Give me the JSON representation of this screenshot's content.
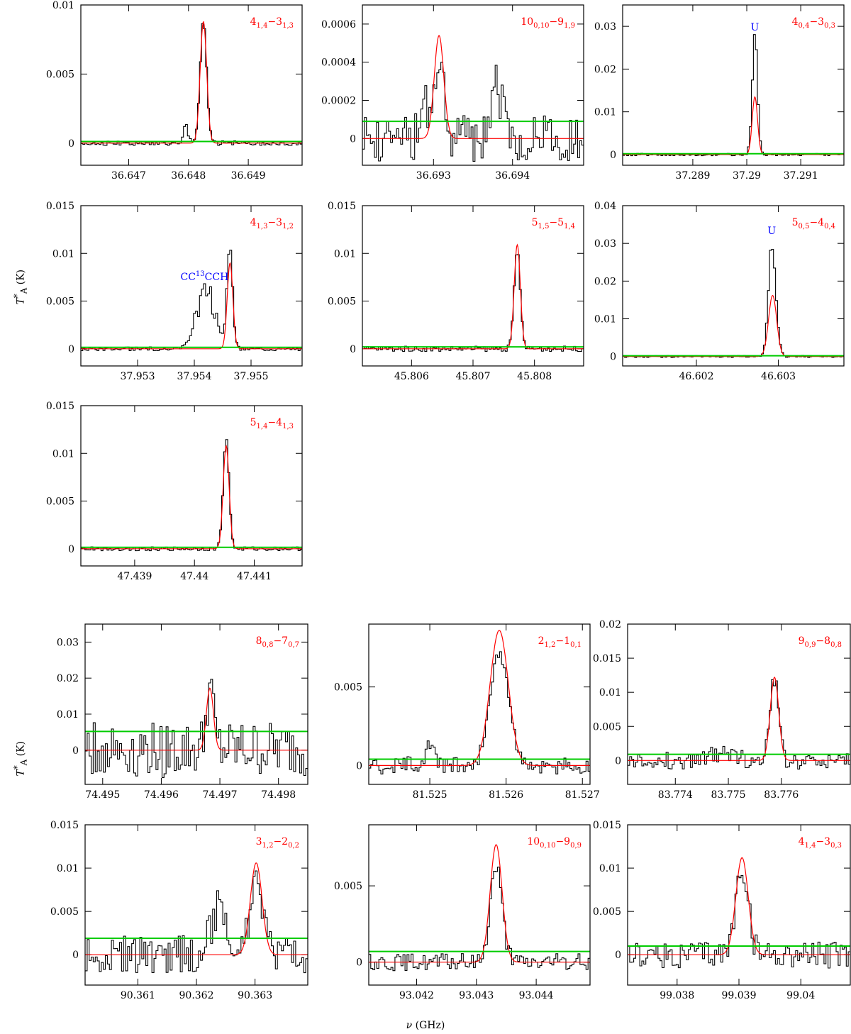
{
  "figure": {
    "y_axis_label": {
      "symbol": "T",
      "sup": "*",
      "sub": "A",
      "unit": "(K)"
    },
    "x_axis_label": {
      "symbol": "ν",
      "unit": "(GHz)"
    },
    "colors": {
      "observed": "#000000",
      "fit": "#ff0000",
      "noise": "#00cc00",
      "blend_label": "#0000ff",
      "line_label": "#ff0000"
    }
  },
  "chart_data": [
    {
      "type": "line",
      "label": {
        "main": "4",
        "sub1": "1,4",
        "dash": "−",
        "main2": "3",
        "sub2": "1,3"
      },
      "xlim": [
        36.6462,
        36.6499
      ],
      "ylim": [
        -0.0016,
        0.01
      ],
      "xticks": [
        "36.647",
        "36.648",
        "36.649"
      ],
      "xtick_values": [
        36.647,
        36.648,
        36.649
      ],
      "yticks": [
        "0",
        "0.005",
        "0.01"
      ],
      "ytick_values": [
        0,
        0.005,
        0.01
      ],
      "noise": 0.00012,
      "peaks": [
        {
          "x": 36.64825,
          "h": 0.0088,
          "w": 5.5e-05
        }
      ],
      "extra": [
        {
          "x": 36.64795,
          "h": 0.0011,
          "w": 4e-05
        }
      ],
      "obs_scale": 1.0,
      "annotations": []
    },
    {
      "type": "line",
      "label": {
        "main": "10",
        "sub1": "0,10",
        "dash": "−",
        "main2": "9",
        "sub2": "1,9"
      },
      "xlim": [
        36.6921,
        36.6949
      ],
      "ylim": [
        -0.00014,
        0.0007
      ],
      "xticks": [
        "36.693",
        "36.694"
      ],
      "xtick_values": [
        36.693,
        36.694
      ],
      "yticks": [
        "0",
        "0.0002",
        "0.0004",
        "0.0006"
      ],
      "ytick_values": [
        0,
        0.0002,
        0.0004,
        0.0006
      ],
      "noise": 9e-05,
      "peaks": [
        {
          "x": 36.69307,
          "h": 0.00054,
          "w": 6e-05
        }
      ],
      "extra": [
        {
          "x": 36.6929,
          "h": 0.0002,
          "w": 6e-05
        },
        {
          "x": 36.6938,
          "h": 0.00025,
          "w": 8e-05
        }
      ],
      "obs_scale": 0.85,
      "annotations": []
    },
    {
      "type": "line",
      "label": {
        "main": "4",
        "sub1": "0,4",
        "dash": "−",
        "main2": "3",
        "sub2": "0,3"
      },
      "xlim": [
        37.2877,
        37.2918
      ],
      "ylim": [
        -0.0025,
        0.035
      ],
      "xticks": [
        "37.289",
        "37.29",
        "37.291"
      ],
      "xtick_values": [
        37.289,
        37.29,
        37.291
      ],
      "yticks": [
        "0",
        "0.01",
        "0.02",
        "0.03"
      ],
      "ytick_values": [
        0,
        0.01,
        0.02,
        0.03
      ],
      "noise": 0.0002,
      "peaks": [
        {
          "x": 37.29015,
          "h": 0.0135,
          "w": 5e-05
        }
      ],
      "extra": [
        {
          "x": 37.29015,
          "h": 0.014,
          "w": 5e-05
        }
      ],
      "obs_scale": 1.0,
      "annotations": [
        {
          "text": "U",
          "x": 37.29015,
          "y": 0.029
        }
      ]
    },
    {
      "type": "line",
      "label": {
        "main": "4",
        "sub1": "1,3",
        "dash": "−",
        "main2": "3",
        "sub2": "1,2"
      },
      "xlim": [
        37.952,
        37.9559
      ],
      "ylim": [
        -0.0018,
        0.015
      ],
      "xticks": [
        "37.953",
        "37.954",
        "37.955"
      ],
      "xtick_values": [
        37.953,
        37.954,
        37.955
      ],
      "yticks": [
        "0",
        "0.005",
        "0.01",
        "0.015"
      ],
      "ytick_values": [
        0,
        0.005,
        0.01,
        0.015
      ],
      "noise": 0.00015,
      "peaks": [
        {
          "x": 37.95463,
          "h": 0.009,
          "w": 5e-05
        }
      ],
      "extra": [
        {
          "x": 37.9542,
          "h": 0.0062,
          "w": 0.00016
        },
        {
          "x": 37.9546,
          "h": 0.0018,
          "w": 5e-05
        }
      ],
      "obs_scale": 1.0,
      "annotations": [
        {
          "text": "CC",
          "sup": "13",
          "text2": "CCH",
          "x": 37.95418,
          "y": 0.0072
        }
      ]
    },
    {
      "type": "line",
      "label": {
        "main": "5",
        "sub1": "1,5",
        "dash": "−",
        "main2": "5",
        "sub2": "1,4"
      },
      "xlim": [
        45.8052,
        45.8088
      ],
      "ylim": [
        -0.0018,
        0.015
      ],
      "xticks": [
        "45.806",
        "45.807",
        "45.808"
      ],
      "xtick_values": [
        45.806,
        45.807,
        45.808
      ],
      "yticks": [
        "0",
        "0.005",
        "0.01",
        "0.015"
      ],
      "ytick_values": [
        0,
        0.005,
        0.01,
        0.015
      ],
      "noise": 0.0002,
      "peaks": [
        {
          "x": 45.80772,
          "h": 0.0109,
          "w": 5e-05
        }
      ],
      "extra": [],
      "obs_scale": 0.95,
      "annotations": []
    },
    {
      "type": "line",
      "label": {
        "main": "5",
        "sub1": "0,5",
        "dash": "−",
        "main2": "4",
        "sub2": "0,4"
      },
      "xlim": [
        46.6011,
        46.6038
      ],
      "ylim": [
        -0.0025,
        0.04
      ],
      "xticks": [
        "46.602",
        "46.603"
      ],
      "xtick_values": [
        46.602,
        46.603
      ],
      "yticks": [
        "0",
        "0.01",
        "0.02",
        "0.03",
        "0.04"
      ],
      "ytick_values": [
        0,
        0.01,
        0.02,
        0.03,
        0.04
      ],
      "noise": 0.0002,
      "peaks": [
        {
          "x": 46.60293,
          "h": 0.0162,
          "w": 5e-05
        }
      ],
      "extra": [
        {
          "x": 46.60292,
          "h": 0.014,
          "w": 4e-05
        }
      ],
      "obs_scale": 1.0,
      "annotations": [
        {
          "text": "U",
          "x": 46.60292,
          "y": 0.0325
        }
      ]
    },
    {
      "type": "line",
      "label": {
        "main": "5",
        "sub1": "1,4",
        "dash": "−",
        "main2": "4",
        "sub2": "1,3"
      },
      "xlim": [
        47.4381,
        47.4418
      ],
      "ylim": [
        -0.0018,
        0.015
      ],
      "xticks": [
        "47.439",
        "47.44",
        "47.441"
      ],
      "xtick_values": [
        47.439,
        47.44,
        47.441
      ],
      "yticks": [
        "0",
        "0.005",
        "0.01",
        "0.015"
      ],
      "ytick_values": [
        0,
        0.005,
        0.01,
        0.015
      ],
      "noise": 0.00015,
      "peaks": [
        {
          "x": 47.44053,
          "h": 0.0108,
          "w": 5e-05
        }
      ],
      "extra": [],
      "obs_scale": 1.06,
      "annotations": []
    },
    {
      "type": "line",
      "label": {
        "main": "8",
        "sub1": "0,8",
        "dash": "−",
        "main2": "7",
        "sub2": "0,7"
      },
      "xlim": [
        74.4947,
        74.4985
      ],
      "ylim": [
        -0.0095,
        0.035
      ],
      "xticks": [
        "74.495",
        "74.496",
        "74.497",
        "74.498"
      ],
      "xtick_values": [
        74.495,
        74.496,
        74.497,
        74.498
      ],
      "yticks": [
        "0",
        "0.01",
        "0.02",
        "0.03"
      ],
      "ytick_values": [
        0,
        0.01,
        0.02,
        0.03
      ],
      "noise": 0.0055,
      "noise_offset": 0.0052,
      "peaks": [
        {
          "x": 74.49683,
          "h": 0.0172,
          "w": 6e-05
        }
      ],
      "extra": [],
      "obs_scale": 1.0,
      "annotations": []
    },
    {
      "type": "line",
      "label": {
        "main": "2",
        "sub1": "1,2",
        "dash": "−",
        "main2": "1",
        "sub2": "0,1"
      },
      "xlim": [
        81.5242,
        81.5271
      ],
      "ylim": [
        -0.0012,
        0.009
      ],
      "xticks": [
        "81.525",
        "81.526",
        "81.527"
      ],
      "xtick_values": [
        81.525,
        81.526,
        81.527
      ],
      "yticks": [
        "0",
        "0.005"
      ],
      "ytick_values": [
        0,
        0.005
      ],
      "noise": 0.0004,
      "peaks": [
        {
          "x": 81.52591,
          "h": 0.0086,
          "w": 0.00012
        }
      ],
      "extra": [
        {
          "x": 81.525,
          "h": 0.0014,
          "w": 6e-05
        }
      ],
      "obs_scale": 0.85,
      "annotations": []
    },
    {
      "type": "line",
      "label": {
        "main": "9",
        "sub1": "0,9",
        "dash": "−",
        "main2": "8",
        "sub2": "0,8"
      },
      "xlim": [
        83.7731,
        83.7773
      ],
      "ylim": [
        -0.0035,
        0.02
      ],
      "xticks": [
        "83.774",
        "83.775",
        "83.776"
      ],
      "xtick_values": [
        83.774,
        83.775,
        83.776
      ],
      "yticks": [
        "0",
        "0.005",
        "0.01",
        "0.015",
        "0.02"
      ],
      "ytick_values": [
        0,
        0.005,
        0.01,
        0.015,
        0.02
      ],
      "noise": 0.0009,
      "noise_offset": 0.0009,
      "peaks": [
        {
          "x": 83.77587,
          "h": 0.0122,
          "w": 8e-05
        }
      ],
      "extra": [
        {
          "x": 83.7749,
          "h": 0.0015,
          "w": 0.0002
        }
      ],
      "obs_scale": 1.0,
      "annotations": []
    },
    {
      "type": "line",
      "label": {
        "main": "3",
        "sub1": "1,2",
        "dash": "−",
        "main2": "2",
        "sub2": "0,2"
      },
      "xlim": [
        90.3601,
        90.3639
      ],
      "ylim": [
        -0.0035,
        0.015
      ],
      "xticks": [
        "90.361",
        "90.362",
        "90.363"
      ],
      "xtick_values": [
        90.361,
        90.362,
        90.363
      ],
      "yticks": [
        "0",
        "0.005",
        "0.01",
        "0.015"
      ],
      "ytick_values": [
        0,
        0.005,
        0.01,
        0.015
      ],
      "noise": 0.0016,
      "noise_offset": 0.0019,
      "peaks": [
        {
          "x": 90.36302,
          "h": 0.0106,
          "w": 0.0001
        }
      ],
      "extra": [
        {
          "x": 90.3624,
          "h": 0.0055,
          "w": 0.00014
        }
      ],
      "obs_scale": 0.9,
      "annotations": []
    },
    {
      "type": "line",
      "label": {
        "main": "10",
        "sub1": "0,10",
        "dash": "−",
        "main2": "9",
        "sub2": "0,9"
      },
      "xlim": [
        93.0412,
        93.0449
      ],
      "ylim": [
        -0.0015,
        0.009
      ],
      "xticks": [
        "93.042",
        "93.043",
        "93.044"
      ],
      "xtick_values": [
        93.042,
        93.043,
        93.044
      ],
      "yticks": [
        "0",
        "0.005"
      ],
      "ytick_values": [
        0,
        0.005
      ],
      "noise": 0.0004,
      "noise_offset": 0.0007,
      "peaks": [
        {
          "x": 93.04333,
          "h": 0.0077,
          "w": 0.0001
        }
      ],
      "extra": [],
      "obs_scale": 0.82,
      "annotations": []
    },
    {
      "type": "line",
      "label": {
        "main": "4",
        "sub1": "1,4",
        "dash": "−",
        "main2": "3",
        "sub2": "0,3"
      },
      "xlim": [
        99.0372,
        99.0408
      ],
      "ylim": [
        -0.0035,
        0.015
      ],
      "xticks": [
        "99.038",
        "99.039",
        "99.04"
      ],
      "xtick_values": [
        99.038,
        99.039,
        99.04
      ],
      "yticks": [
        "0",
        "0.005",
        "0.01",
        "0.015"
      ],
      "ytick_values": [
        0,
        0.005,
        0.01,
        0.015
      ],
      "noise": 0.0011,
      "noise_offset": 0.001,
      "peaks": [
        {
          "x": 99.03905,
          "h": 0.0112,
          "w": 0.0001
        }
      ],
      "extra": [],
      "obs_scale": 0.9,
      "annotations": []
    }
  ]
}
